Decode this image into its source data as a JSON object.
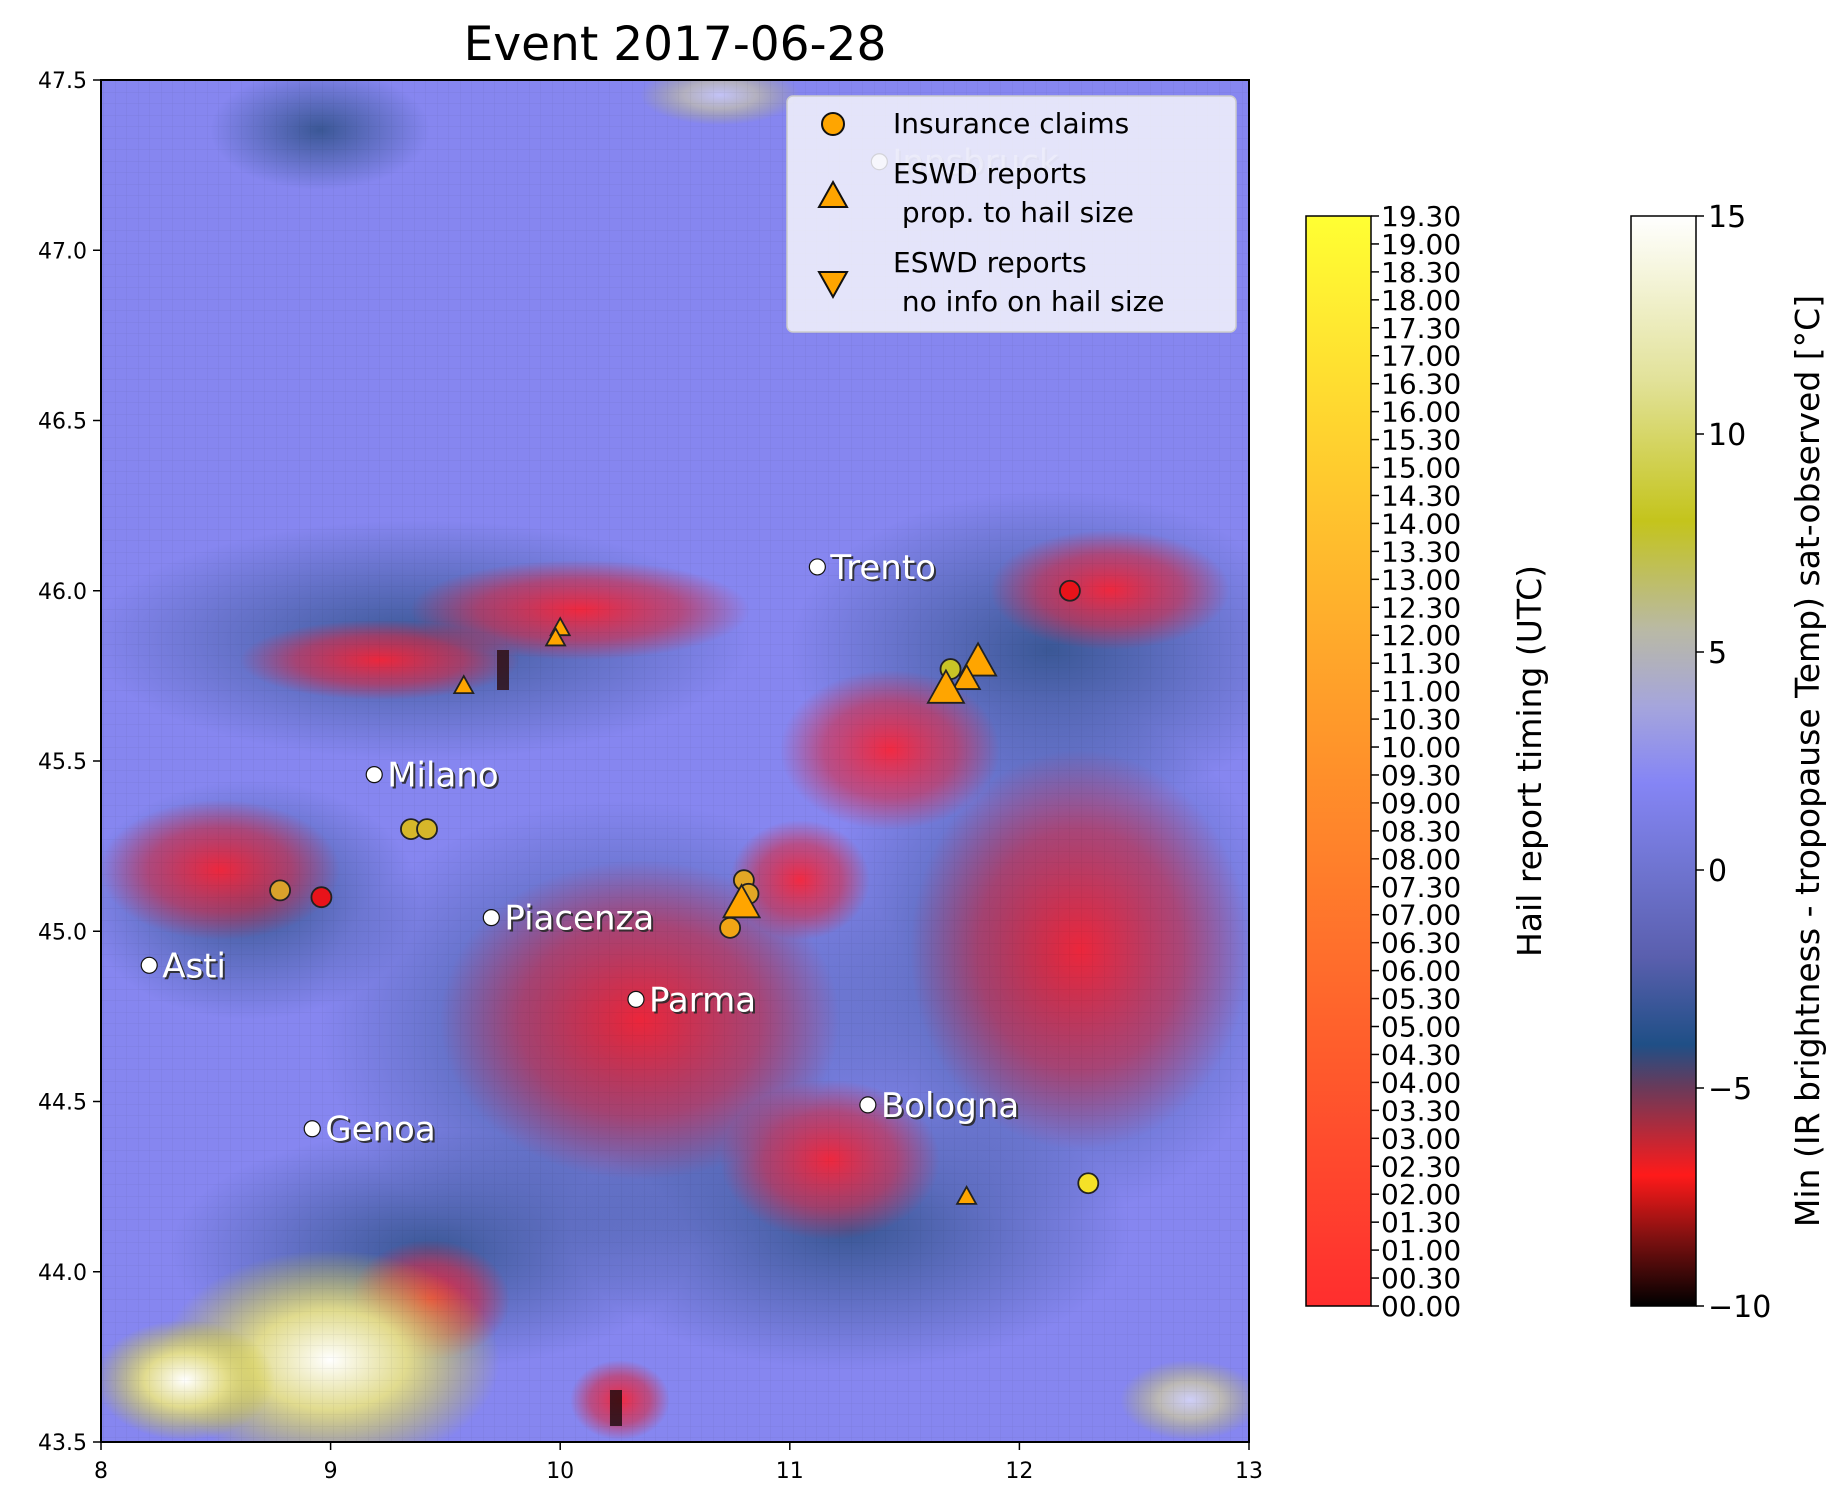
{
  "title": "Event 2017-06-28",
  "map": {
    "x_ticks": [
      "8",
      "9",
      "10",
      "11",
      "12",
      "13"
    ],
    "y_ticks": [
      "43.5",
      "44.0",
      "44.5",
      "45.0",
      "45.5",
      "46.0",
      "46.5",
      "47.0",
      "47.5"
    ],
    "xlim": [
      8,
      13
    ],
    "ylim": [
      43.5,
      47.5
    ],
    "cities": [
      {
        "name": "Innsbruck",
        "lon": 11.39,
        "lat": 47.26
      },
      {
        "name": "Trento",
        "lon": 11.12,
        "lat": 46.07
      },
      {
        "name": "Milano",
        "lon": 9.19,
        "lat": 45.46
      },
      {
        "name": "Piacenza",
        "lon": 9.7,
        "lat": 45.04
      },
      {
        "name": "Asti",
        "lon": 8.21,
        "lat": 44.9
      },
      {
        "name": "Parma",
        "lon": 10.33,
        "lat": 44.8
      },
      {
        "name": "Bologna",
        "lon": 11.34,
        "lat": 44.49
      },
      {
        "name": "Genoa",
        "lon": 8.92,
        "lat": 44.42
      }
    ],
    "insurance_claims": [
      {
        "lon": 12.22,
        "lat": 46.0,
        "color": "#e8131a"
      },
      {
        "lon": 11.7,
        "lat": 45.77,
        "color": "#c8c426"
      },
      {
        "lon": 9.35,
        "lat": 45.3,
        "color": "#d6b72a"
      },
      {
        "lon": 9.42,
        "lat": 45.3,
        "color": "#d6b72a"
      },
      {
        "lon": 8.78,
        "lat": 45.12,
        "color": "#d9a22b"
      },
      {
        "lon": 8.96,
        "lat": 45.1,
        "color": "#e8131a"
      },
      {
        "lon": 10.8,
        "lat": 45.15,
        "color": "#e2a725"
      },
      {
        "lon": 10.82,
        "lat": 45.11,
        "color": "#e2a725"
      },
      {
        "lon": 10.74,
        "lat": 45.01,
        "color": "#f1a515"
      },
      {
        "lon": 12.3,
        "lat": 44.26,
        "color": "#f5e127"
      }
    ],
    "eswd_reports": [
      {
        "lon": 10.0,
        "lat": 45.89,
        "size": "small"
      },
      {
        "lon": 9.98,
        "lat": 45.86,
        "size": "small"
      },
      {
        "lon": 9.58,
        "lat": 45.72,
        "size": "small"
      },
      {
        "lon": 11.82,
        "lat": 45.79,
        "size": "large"
      },
      {
        "lon": 11.77,
        "lat": 45.74,
        "size": "medium"
      },
      {
        "lon": 11.68,
        "lat": 45.71,
        "size": "large"
      },
      {
        "lon": 10.79,
        "lat": 45.08,
        "size": "large"
      },
      {
        "lon": 11.77,
        "lat": 44.22,
        "size": "small"
      }
    ]
  },
  "legend": {
    "entries": [
      {
        "label_lines": [
          "Insurance claims"
        ],
        "marker": "circle"
      },
      {
        "label_lines": [
          "ESWD reports",
          " prop. to hail size"
        ],
        "marker": "triangle-up"
      },
      {
        "label_lines": [
          "ESWD reports",
          " no info on hail size"
        ],
        "marker": "triangle-down"
      }
    ]
  },
  "colorbar_time": {
    "label": "Hail report timing (UTC)",
    "ticks": [
      "00.00",
      "00.30",
      "01.00",
      "01.30",
      "02.00",
      "02.30",
      "03.00",
      "03.30",
      "04.00",
      "04.30",
      "05.00",
      "05.30",
      "06.00",
      "06.30",
      "07.00",
      "07.30",
      "08.00",
      "08.30",
      "09.00",
      "09.30",
      "10.00",
      "10.30",
      "11.00",
      "11.30",
      "12.00",
      "12.30",
      "13.00",
      "13.30",
      "14.00",
      "14.30",
      "15.00",
      "15.30",
      "16.00",
      "16.30",
      "17.00",
      "17.30",
      "18.00",
      "18.30",
      "19.00",
      "19.30"
    ],
    "colors": [
      "#ff2a2a",
      "#ff9f2a",
      "#ffff33"
    ]
  },
  "colorbar_temp": {
    "label": "Min (IR brightness - tropopause Temp) sat-observed [°C]",
    "range": [
      -10,
      15
    ],
    "ticks": [
      "−10",
      "−5",
      "0",
      "5",
      "10",
      "15"
    ],
    "tick_values": [
      -10,
      -5,
      0,
      5,
      10,
      15
    ]
  }
}
